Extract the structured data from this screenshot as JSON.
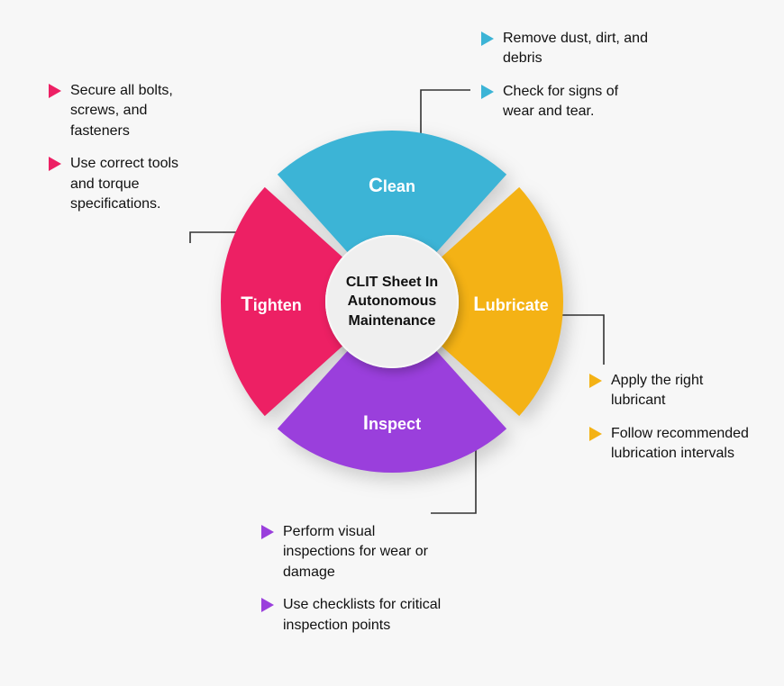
{
  "diagram": {
    "type": "donut-infographic",
    "background_color": "#f7f7f7",
    "outer_radius": 190,
    "inner_radius": 74,
    "gap_deg": 6,
    "center_bg": "#efefef",
    "center_text_color": "#111111",
    "center_label": "CLIT Sheet In Autonomous Maintenance",
    "center_fontsize": 16,
    "seg_label_color": "#ffffff",
    "seg_label_fontsize": 18,
    "seg_firstletter_fontsize": 22,
    "callout_fontsize": 16,
    "leader_color": "#333333",
    "shadow": "6px 8px 10px rgba(0,0,0,0.18)"
  },
  "segments": {
    "clean": {
      "label_first": "C",
      "label_rest": "lean",
      "color": "#3cb4d6",
      "bullet1": "Remove dust, dirt, and debris",
      "bullet2": "Check for signs of wear and tear."
    },
    "lubricate": {
      "label_first": "L",
      "label_rest": "ubricate",
      "color": "#f4b215",
      "bullet1": "Apply the right lubricant",
      "bullet2": "Follow recommended lubrication intervals"
    },
    "inspect": {
      "label_first": "I",
      "label_rest": "nspect",
      "color": "#9a3fdc",
      "bullet1": "Perform visual inspections for wear or damage",
      "bullet2": "Use checklists for critical inspection points"
    },
    "tighten": {
      "label_first": "T",
      "label_rest": "ighten",
      "color": "#ed2064",
      "bullet1": "Secure all bolts, screws, and fasteners",
      "bullet2": "Use correct tools and torque specifications."
    }
  }
}
